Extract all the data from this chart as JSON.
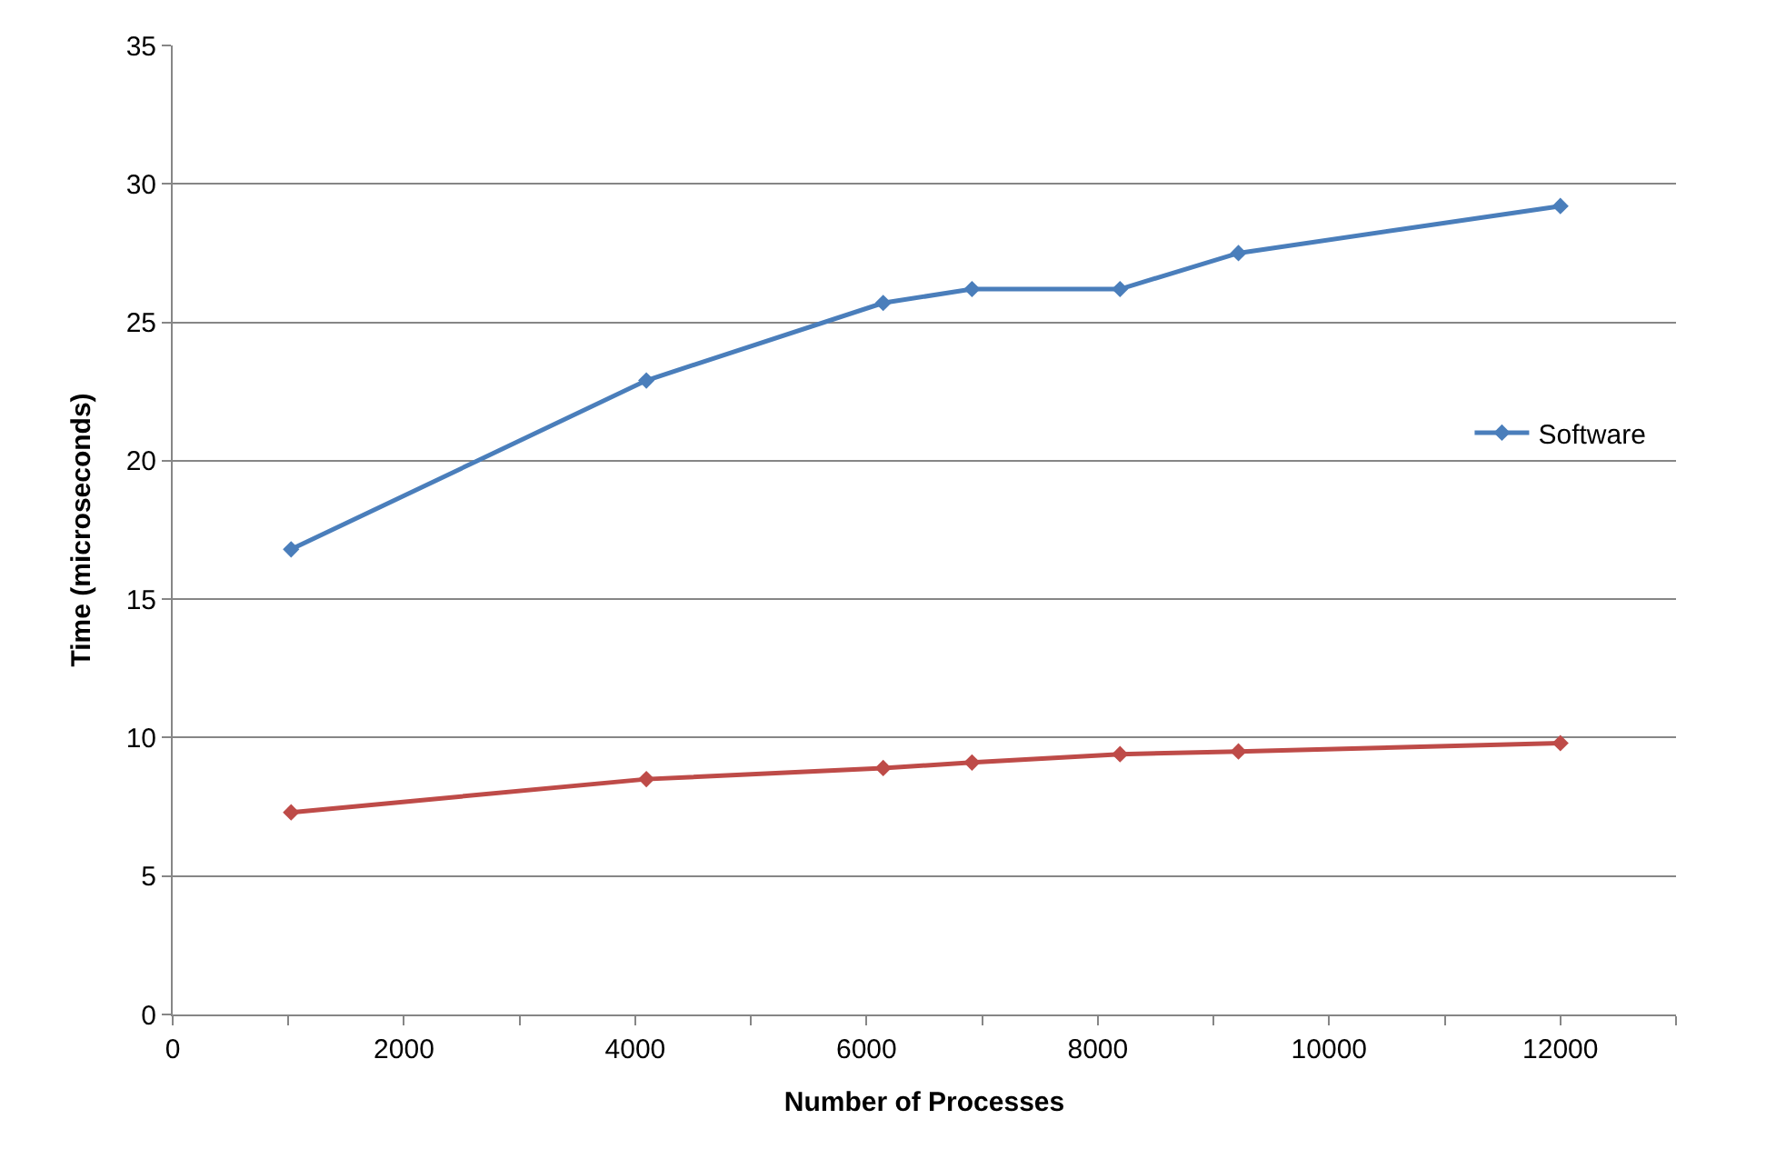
{
  "chart_data": {
    "type": "line",
    "xlabel": "Number of Processes",
    "ylabel": "Time (microseconds)",
    "x": [
      1024,
      4096,
      6144,
      6912,
      8192,
      9216,
      12000
    ],
    "series": [
      {
        "name": "Software",
        "color": "#4a7ebb",
        "values": [
          16.8,
          22.9,
          25.7,
          26.2,
          26.2,
          27.5,
          29.2
        ]
      },
      {
        "color": "#be4b48",
        "values": [
          7.3,
          8.5,
          8.9,
          9.1,
          9.4,
          9.5,
          9.8
        ]
      }
    ],
    "xlim": [
      0,
      13000
    ],
    "xticks": [
      0,
      {
        "value": 1000,
        "label": null
      },
      2000,
      {
        "value": 3000,
        "label": null
      },
      4000,
      {
        "value": 5000,
        "label": null
      },
      6000,
      {
        "value": 7000,
        "label": null
      },
      8000,
      {
        "value": 9000,
        "label": null
      },
      10000,
      {
        "value": 11000,
        "label": null
      },
      12000,
      {
        "value": 13000,
        "label": null
      }
    ],
    "ylim": [
      0,
      35
    ],
    "yticks": [
      0,
      5,
      10,
      15,
      20,
      25,
      30,
      35
    ],
    "grid": "y",
    "legend": "right",
    "marker": "diamond",
    "line_style": "solid"
  }
}
